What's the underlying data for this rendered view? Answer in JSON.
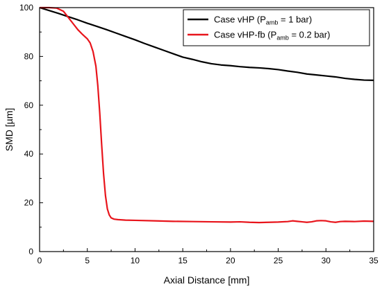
{
  "chart_data": {
    "type": "line",
    "xlabel": "Axial Distance [mm]",
    "ylabel": "SMD [µm]",
    "xlim": [
      0,
      35
    ],
    "ylim": [
      0,
      100
    ],
    "x_ticks": [
      0,
      5,
      10,
      15,
      20,
      25,
      30,
      35
    ],
    "y_ticks": [
      0,
      20,
      40,
      60,
      80,
      100
    ],
    "grid": false,
    "legend_position": "top-right",
    "series": [
      {
        "name": "Case vHP (Pamb = 1 bar)",
        "legend": {
          "prefix": "Case vHP (P",
          "sub": "amb",
          "suffix": " = 1 bar)"
        },
        "color": "#000000",
        "x": [
          0,
          1,
          2,
          3,
          4,
          5,
          6,
          7,
          8,
          9,
          10,
          11,
          12,
          13,
          14,
          15,
          16,
          17,
          18,
          19,
          20,
          21,
          22,
          23,
          24,
          25,
          26,
          27,
          28,
          29,
          30,
          31,
          32,
          33,
          34,
          35
        ],
        "y": [
          100,
          98.8,
          97.6,
          96.3,
          95,
          93.6,
          92.3,
          91,
          89.6,
          88.2,
          86.8,
          85.3,
          83.9,
          82.5,
          81.1,
          79.7,
          78.8,
          77.8,
          77,
          76.5,
          76.2,
          75.8,
          75.5,
          75.3,
          75,
          74.6,
          74,
          73.5,
          72.8,
          72.4,
          72,
          71.6,
          71,
          70.6,
          70.3,
          70.2
        ]
      },
      {
        "name": "Case vHP-fb (Pamb = 0.2 bar)",
        "legend": {
          "prefix": "Case vHP-fb (P",
          "sub": "amb",
          "suffix": " = 0.2 bar)"
        },
        "color": "#e8141b",
        "x": [
          0,
          1,
          1.8,
          2.5,
          3,
          3.5,
          4,
          4.5,
          5,
          5.3,
          5.6,
          5.9,
          6.1,
          6.3,
          6.5,
          6.7,
          6.9,
          7.1,
          7.3,
          7.5,
          7.8,
          8.2,
          9,
          10,
          12,
          14,
          16,
          18,
          20,
          21,
          22,
          23,
          24,
          25,
          26,
          26.5,
          27,
          27.5,
          28,
          28.5,
          29,
          29.5,
          30,
          30.5,
          31,
          31.5,
          32,
          33,
          34,
          35
        ],
        "y": [
          100,
          100,
          99.8,
          98.5,
          96,
          93.5,
          91,
          89,
          87.2,
          85.5,
          82,
          76,
          68,
          57,
          44,
          32,
          23,
          17.5,
          15,
          13.8,
          13.3,
          13.1,
          12.9,
          12.8,
          12.6,
          12.4,
          12.3,
          12.2,
          12.1,
          12.2,
          12.0,
          11.9,
          12.0,
          12.1,
          12.3,
          12.6,
          12.4,
          12.2,
          12.0,
          12.2,
          12.6,
          12.7,
          12.6,
          12.2,
          12.0,
          12.3,
          12.4,
          12.3,
          12.5,
          12.4
        ]
      }
    ]
  }
}
